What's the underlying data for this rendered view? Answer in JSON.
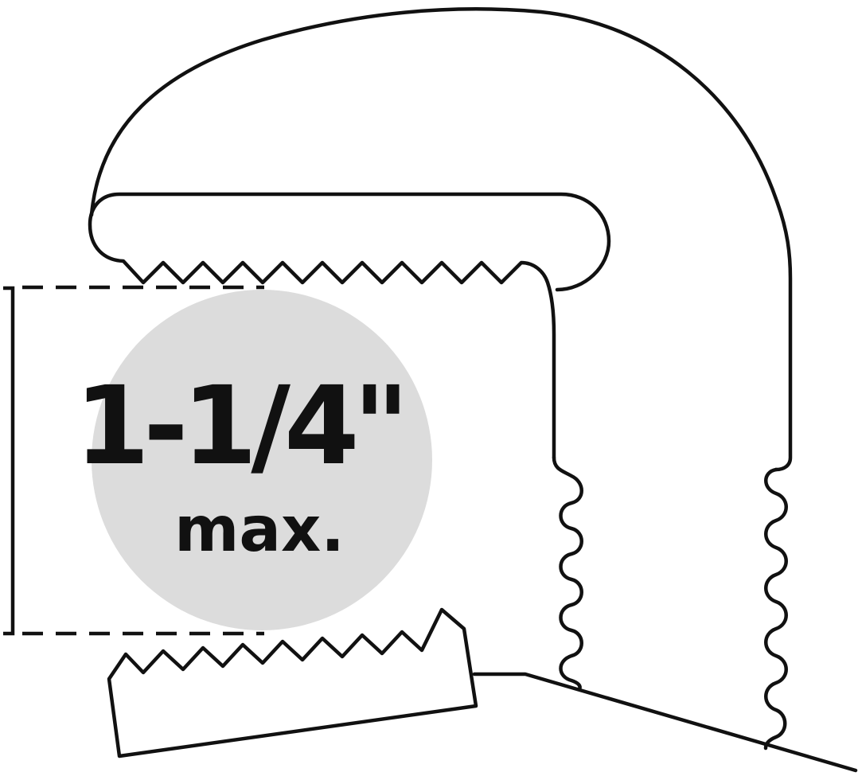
{
  "diagram": {
    "capacity_value": "1-1/4\"",
    "capacity_label": "max.",
    "badge_color": "#dcdcdc",
    "line_color": "#111111"
  }
}
